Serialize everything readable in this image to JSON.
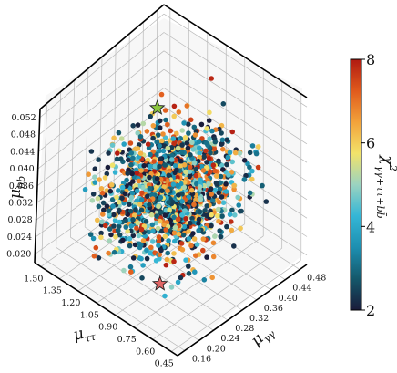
{
  "chart_data": {
    "type": "scatter",
    "projection": "3d",
    "xlabel": "μ_ττ",
    "ylabel": "μ_γγ",
    "zlabel": "μ_bb̄",
    "colorbar_label": "χ²_{γγ+ττ+bb̄}",
    "xlim": [
      0.4,
      1.55
    ],
    "ylim": [
      0.14,
      0.5
    ],
    "zlim": [
      0.018,
      0.054
    ],
    "x_ticks": [
      "1.50",
      "1.35",
      "1.20",
      "1.05",
      "0.90",
      "0.75",
      "0.60",
      "0.45"
    ],
    "x_tick_values": [
      1.5,
      1.35,
      1.2,
      1.05,
      0.9,
      0.75,
      0.6,
      0.45
    ],
    "y_ticks": [
      "0.16",
      "0.20",
      "0.24",
      "0.28",
      "0.32",
      "0.36",
      "0.40",
      "0.44",
      "0.48"
    ],
    "y_tick_values": [
      0.16,
      0.2,
      0.24,
      0.28,
      0.32,
      0.36,
      0.4,
      0.44,
      0.48
    ],
    "z_ticks": [
      "0.020",
      "0.024",
      "0.028",
      "0.032",
      "0.036",
      "0.040",
      "0.044",
      "0.048",
      "0.052"
    ],
    "z_tick_values": [
      0.02,
      0.024,
      0.028,
      0.032,
      0.036,
      0.04,
      0.044,
      0.048,
      0.052
    ],
    "colorbar_ticks": [
      "2",
      "4",
      "6",
      "8"
    ],
    "colorbar_tick_values": [
      2,
      4,
      6,
      8
    ],
    "color_range": [
      2,
      8
    ],
    "colormap": [
      "#1a1c3a",
      "#14586b",
      "#1d8fb0",
      "#34b6d6",
      "#9bd3c0",
      "#f2e36a",
      "#f2a23a",
      "#e05a1c",
      "#b01a12"
    ],
    "grid": true,
    "point_count": 1400,
    "cloud": {
      "x_range": [
        0.5,
        1.25
      ],
      "y_range": [
        0.16,
        0.4
      ],
      "z_range": [
        0.03,
        0.046
      ],
      "chi2_range": [
        2,
        8
      ]
    },
    "markers": [
      {
        "shape": "star",
        "x": 0.63,
        "y": 0.17,
        "z": 0.028,
        "color": "#e06666"
      },
      {
        "shape": "star",
        "x": 1.18,
        "y": 0.35,
        "z": 0.047,
        "color": "#8cc63f"
      }
    ]
  }
}
